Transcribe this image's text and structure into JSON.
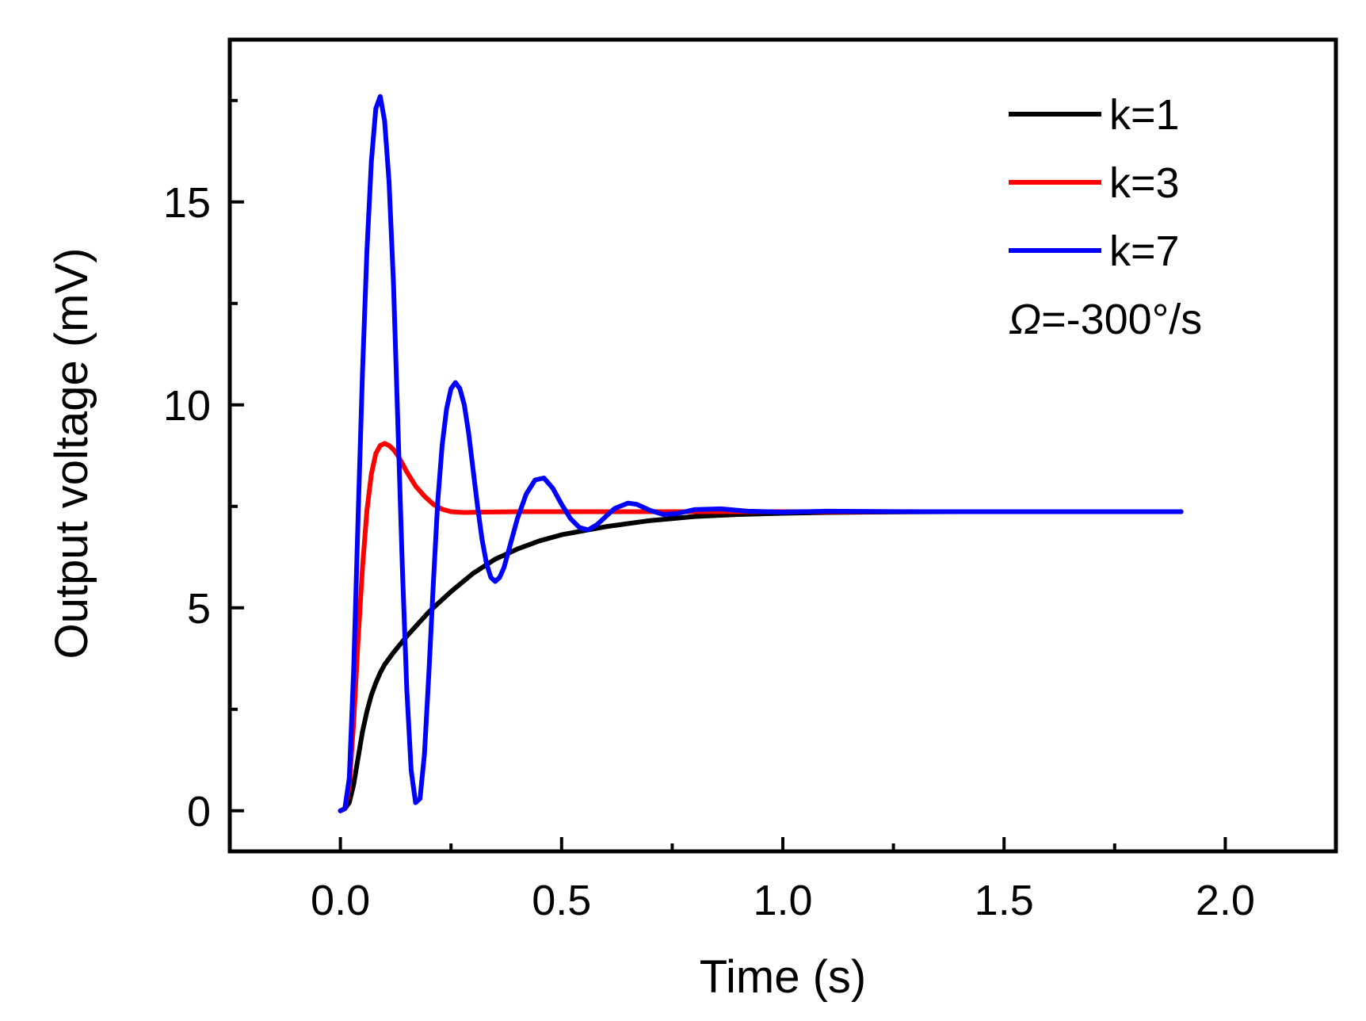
{
  "chart_data": {
    "type": "line",
    "title": "",
    "xlabel": "Time (s)",
    "ylabel": "Output voltage (mV)",
    "xlim": [
      -0.25,
      2.25
    ],
    "ylim": [
      -1,
      19
    ],
    "x_ticks": [
      0.0,
      0.5,
      1.0,
      1.5,
      2.0
    ],
    "x_tick_labels": [
      "0.0",
      "0.5",
      "1.0",
      "1.5",
      "2.0"
    ],
    "x_minor_ticks": [
      0.25,
      0.75,
      1.25,
      1.75
    ],
    "y_ticks": [
      0,
      5,
      10,
      15
    ],
    "y_tick_labels": [
      "0",
      "5",
      "10",
      "15"
    ],
    "y_minor_ticks": [
      2.5,
      7.5,
      12.5,
      17.5
    ],
    "grid": false,
    "legend_position": "top-right",
    "annotation": "Ω=-300°/s",
    "series": [
      {
        "name": "k=1",
        "color": "#000000",
        "x": [
          0,
          0.01,
          0.02,
          0.03,
          0.04,
          0.05,
          0.06,
          0.07,
          0.08,
          0.09,
          0.1,
          0.12,
          0.15,
          0.2,
          0.25,
          0.3,
          0.35,
          0.4,
          0.45,
          0.5,
          0.6,
          0.7,
          0.8,
          0.9,
          1.0,
          1.1,
          1.2,
          1.4,
          1.6,
          1.9
        ],
        "y": [
          0,
          0.05,
          0.2,
          0.65,
          1.3,
          1.95,
          2.45,
          2.85,
          3.15,
          3.4,
          3.6,
          3.9,
          4.3,
          4.9,
          5.4,
          5.85,
          6.2,
          6.45,
          6.65,
          6.8,
          7.0,
          7.15,
          7.25,
          7.3,
          7.33,
          7.35,
          7.36,
          7.37,
          7.37,
          7.37
        ]
      },
      {
        "name": "k=3",
        "color": "#ff0000",
        "x": [
          0,
          0.01,
          0.02,
          0.03,
          0.04,
          0.05,
          0.06,
          0.07,
          0.08,
          0.09,
          0.1,
          0.11,
          0.12,
          0.13,
          0.14,
          0.15,
          0.17,
          0.19,
          0.21,
          0.23,
          0.25,
          0.28,
          0.32,
          0.4,
          0.6,
          1.0,
          1.5,
          1.9
        ],
        "y": [
          0,
          0.05,
          0.6,
          2.2,
          4.2,
          6.0,
          7.4,
          8.3,
          8.8,
          9.0,
          9.05,
          9.0,
          8.9,
          8.75,
          8.55,
          8.35,
          8.0,
          7.75,
          7.55,
          7.43,
          7.37,
          7.35,
          7.36,
          7.37,
          7.37,
          7.37,
          7.37,
          7.37
        ]
      },
      {
        "name": "k=7",
        "color": "#0000ff",
        "x": [
          0,
          0.01,
          0.02,
          0.03,
          0.04,
          0.05,
          0.06,
          0.07,
          0.08,
          0.09,
          0.1,
          0.11,
          0.12,
          0.13,
          0.14,
          0.15,
          0.16,
          0.17,
          0.18,
          0.19,
          0.2,
          0.21,
          0.22,
          0.23,
          0.24,
          0.25,
          0.26,
          0.27,
          0.28,
          0.29,
          0.3,
          0.31,
          0.32,
          0.33,
          0.34,
          0.35,
          0.36,
          0.37,
          0.38,
          0.4,
          0.42,
          0.44,
          0.46,
          0.48,
          0.5,
          0.52,
          0.54,
          0.56,
          0.58,
          0.6,
          0.62,
          0.65,
          0.67,
          0.7,
          0.73,
          0.76,
          0.8,
          0.86,
          0.92,
          1.0,
          1.1,
          1.3,
          1.6,
          1.9
        ],
        "y": [
          0,
          0.05,
          0.8,
          3.5,
          7.2,
          10.8,
          13.8,
          16.0,
          17.3,
          17.6,
          17.0,
          15.5,
          13.0,
          9.5,
          6.0,
          3.0,
          1.0,
          0.2,
          0.3,
          1.4,
          3.4,
          5.6,
          7.6,
          9.0,
          9.9,
          10.4,
          10.55,
          10.4,
          10.0,
          9.3,
          8.4,
          7.5,
          6.7,
          6.1,
          5.75,
          5.65,
          5.75,
          6.0,
          6.4,
          7.2,
          7.8,
          8.15,
          8.2,
          7.95,
          7.55,
          7.2,
          6.98,
          6.92,
          7.05,
          7.25,
          7.45,
          7.58,
          7.55,
          7.4,
          7.3,
          7.32,
          7.42,
          7.44,
          7.38,
          7.36,
          7.38,
          7.37,
          7.37,
          7.37
        ]
      }
    ]
  }
}
